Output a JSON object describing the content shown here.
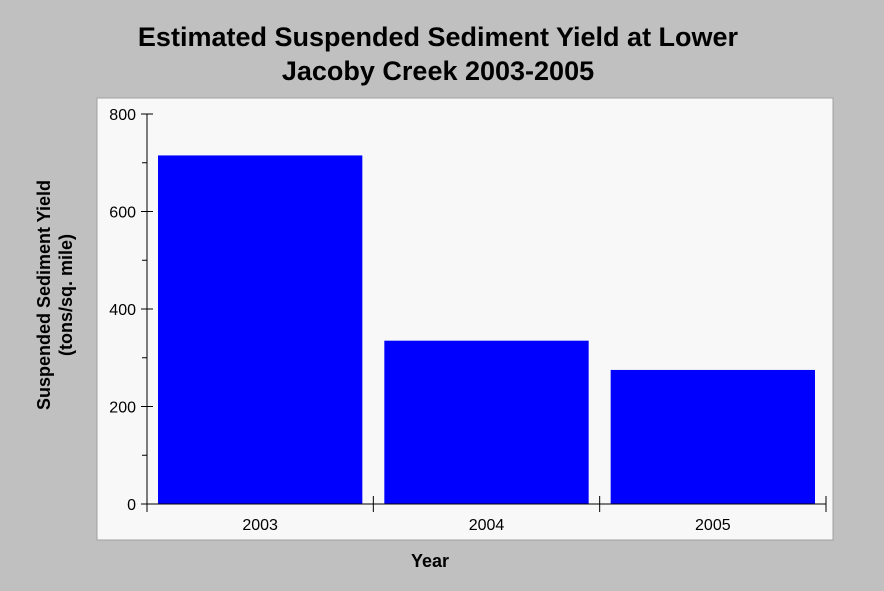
{
  "chart_data": {
    "type": "bar",
    "title_lines": [
      "Estimated Suspended Sediment Yield at Lower",
      "Jacoby Creek 2003-2005"
    ],
    "xlabel": "Year",
    "ylabel_lines": [
      "Suspended Sediment Yield",
      "(tons/sq. mile)"
    ],
    "categories": [
      "2003",
      "2004",
      "2005"
    ],
    "values": [
      715,
      335,
      275
    ],
    "ylim": [
      0,
      800
    ],
    "yticks": [
      "0",
      "200",
      "400",
      "600",
      "800"
    ],
    "grid": false,
    "legend": "none"
  },
  "colors": {
    "background": "#c0c0c0",
    "plot_area": "#f8f8f8",
    "bar": "#0000ff"
  }
}
